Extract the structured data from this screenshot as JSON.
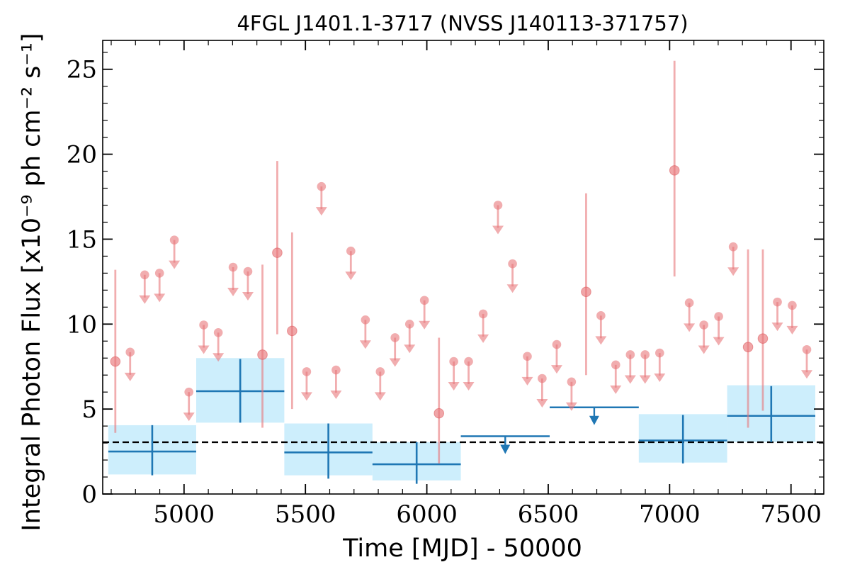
{
  "chart_data": {
    "type": "scatter",
    "title": "4FGL J1401.1-3717 (NVSS J140113-371757)",
    "xlabel": "Time [MJD] - 50000",
    "ylabel": "Integral Photon Flux [x10⁻⁹ ph cm⁻² s⁻¹]",
    "xlim": [
      4665,
      7635
    ],
    "ylim": [
      0,
      26.7
    ],
    "x_ticks": [
      5000,
      5500,
      6000,
      6500,
      7000,
      7500
    ],
    "y_ticks": [
      0,
      5,
      10,
      15,
      20,
      25
    ],
    "x_minor_step": 100,
    "y_minor_step": 1,
    "grid": false,
    "colors": {
      "short_bin": "#e8767a",
      "long_bin": "#1f77b4",
      "long_bin_band": "#cdeefc",
      "reference_line": "#000000"
    },
    "reference_line": {
      "y": 3.05,
      "style": "dashed"
    },
    "short_bins": {
      "detections": [
        {
          "x": 4717,
          "y": 7.8,
          "ylo": 3.6,
          "yhi": 13.2
        },
        {
          "x": 5323,
          "y": 8.2,
          "ylo": 3.9,
          "yhi": 13.5
        },
        {
          "x": 5384,
          "y": 14.2,
          "ylo": 9.4,
          "yhi": 19.6
        },
        {
          "x": 5445,
          "y": 9.6,
          "ylo": 5.0,
          "yhi": 15.4
        },
        {
          "x": 6050,
          "y": 4.75,
          "ylo": 1.8,
          "yhi": 9.2
        },
        {
          "x": 6656,
          "y": 11.9,
          "ylo": 7.0,
          "yhi": 17.7
        },
        {
          "x": 7020,
          "y": 19.05,
          "ylo": 12.8,
          "yhi": 25.5
        },
        {
          "x": 7323,
          "y": 8.65,
          "ylo": 3.9,
          "yhi": 14.4
        },
        {
          "x": 7384,
          "y": 9.15,
          "ylo": 4.9,
          "yhi": 14.4
        }
      ],
      "upper_limits": [
        {
          "x": 4778,
          "y": 8.35
        },
        {
          "x": 4838,
          "y": 12.9
        },
        {
          "x": 4899,
          "y": 13.0
        },
        {
          "x": 4960,
          "y": 14.95
        },
        {
          "x": 5020,
          "y": 6.0
        },
        {
          "x": 5081,
          "y": 9.95
        },
        {
          "x": 5141,
          "y": 9.5
        },
        {
          "x": 5202,
          "y": 13.35
        },
        {
          "x": 5263,
          "y": 13.1
        },
        {
          "x": 5505,
          "y": 7.2
        },
        {
          "x": 5566,
          "y": 18.1
        },
        {
          "x": 5626,
          "y": 7.3
        },
        {
          "x": 5687,
          "y": 14.3
        },
        {
          "x": 5747,
          "y": 10.25
        },
        {
          "x": 5808,
          "y": 7.2
        },
        {
          "x": 5869,
          "y": 9.2
        },
        {
          "x": 5929,
          "y": 10.0
        },
        {
          "x": 5990,
          "y": 11.4
        },
        {
          "x": 6111,
          "y": 7.8
        },
        {
          "x": 6172,
          "y": 7.8
        },
        {
          "x": 6232,
          "y": 10.6
        },
        {
          "x": 6293,
          "y": 17.0
        },
        {
          "x": 6353,
          "y": 13.55
        },
        {
          "x": 6414,
          "y": 8.1
        },
        {
          "x": 6475,
          "y": 6.8
        },
        {
          "x": 6535,
          "y": 8.8
        },
        {
          "x": 6596,
          "y": 6.6
        },
        {
          "x": 6717,
          "y": 10.5
        },
        {
          "x": 6778,
          "y": 7.6
        },
        {
          "x": 6838,
          "y": 8.2
        },
        {
          "x": 6899,
          "y": 8.2
        },
        {
          "x": 6959,
          "y": 8.3
        },
        {
          "x": 7081,
          "y": 11.25
        },
        {
          "x": 7141,
          "y": 9.95
        },
        {
          "x": 7202,
          "y": 10.45
        },
        {
          "x": 7262,
          "y": 14.55
        },
        {
          "x": 7444,
          "y": 11.3
        },
        {
          "x": 7505,
          "y": 11.1
        },
        {
          "x": 7565,
          "y": 8.5
        }
      ]
    },
    "long_bins": {
      "detections": [
        {
          "x0": 4688,
          "x1": 5050,
          "y": 2.5,
          "band_lo": 1.15,
          "band_hi": 4.05,
          "err_lo": 1.1,
          "err_hi": 4.05
        },
        {
          "x0": 5050,
          "x1": 5413,
          "y": 6.05,
          "band_lo": 4.2,
          "band_hi": 8.0,
          "err_lo": 4.2,
          "err_hi": 7.95
        },
        {
          "x0": 5413,
          "x1": 5776,
          "y": 2.45,
          "band_lo": 1.1,
          "band_hi": 4.15,
          "err_lo": 0.9,
          "err_hi": 4.15
        },
        {
          "x0": 5776,
          "x1": 6140,
          "y": 1.75,
          "band_lo": 0.8,
          "band_hi": 3.05,
          "err_lo": 0.6,
          "err_hi": 3.05
        },
        {
          "x0": 6873,
          "x1": 7237,
          "y": 3.15,
          "band_lo": 1.85,
          "band_hi": 4.7,
          "err_lo": 1.8,
          "err_hi": 4.65
        },
        {
          "x0": 7237,
          "x1": 7600,
          "y": 4.6,
          "band_lo": 3.05,
          "band_hi": 6.4,
          "err_lo": 3.05,
          "err_hi": 6.35
        }
      ],
      "upper_limits": [
        {
          "x0": 6140,
          "x1": 6506,
          "y": 3.4
        },
        {
          "x0": 6506,
          "x1": 6873,
          "y": 5.1
        }
      ]
    }
  }
}
